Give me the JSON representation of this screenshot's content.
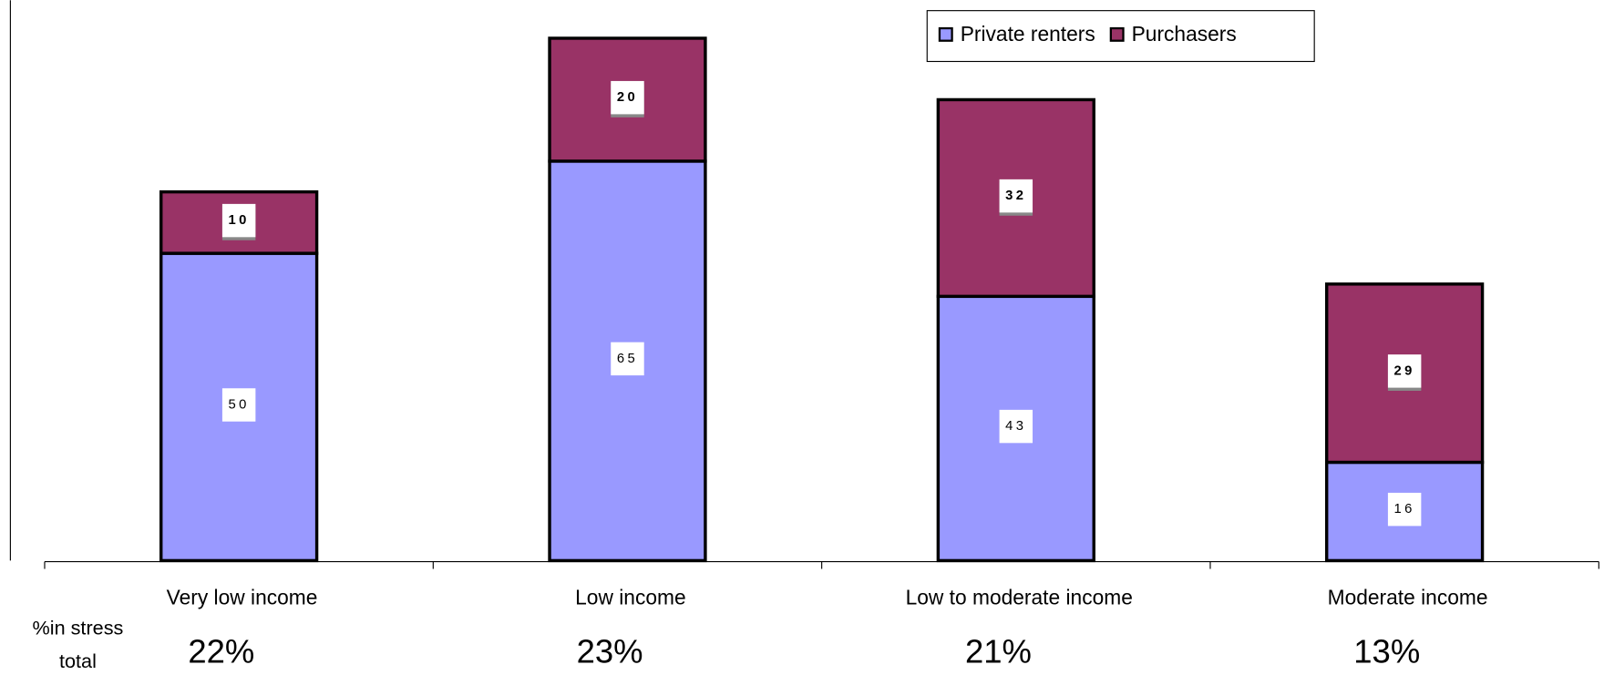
{
  "chart_data": {
    "type": "stacked_bar",
    "categories": [
      "Very low income",
      "Low income",
      "Low to moderate income",
      "Moderate income"
    ],
    "series": [
      {
        "name": "Private renters",
        "color": "#9999ff",
        "values": [
          50,
          65,
          43,
          16
        ]
      },
      {
        "name": "Purchasers",
        "color": "#993366",
        "values": [
          10,
          20,
          32,
          29
        ]
      }
    ],
    "ylim": [
      0,
      90
    ],
    "legend": "top-right",
    "in_stress_total_label": "%in stress total",
    "in_stress_total": [
      "22%",
      "23%",
      "21%",
      "13%"
    ]
  }
}
